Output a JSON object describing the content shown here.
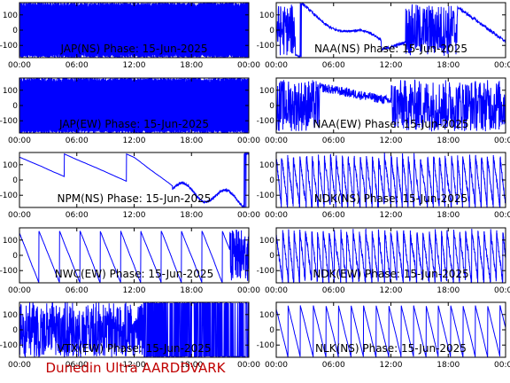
{
  "footer": "Dunedin Ultra AARDDVARK",
  "chart_data": {
    "type": "line",
    "date": "15-Jun-2025",
    "x_ticks": [
      "00:00",
      "06:00",
      "12:00",
      "18:00",
      "00:00"
    ],
    "xlim_hours": [
      0,
      24
    ],
    "ylim": [
      -180,
      180
    ],
    "y_ticks": [
      100,
      0,
      -100
    ],
    "series_color": "#0000ff",
    "panels": [
      {
        "label": "JAP(NS) Phase: 15-Jun-2025",
        "pattern": "dense",
        "col": 0,
        "row": 0
      },
      {
        "label": "NAA(NS) Phase: 15-Jun-2025",
        "pattern": "naa_ns",
        "col": 1,
        "row": 0
      },
      {
        "label": "JAP(EW) Phase: 15-Jun-2025",
        "pattern": "dense",
        "col": 0,
        "row": 1
      },
      {
        "label": "NAA(EW) Phase: 15-Jun-2025",
        "pattern": "naa_ew",
        "col": 1,
        "row": 1
      },
      {
        "label": "NPM(NS) Phase: 15-Jun-2025",
        "pattern": "npm",
        "col": 0,
        "row": 2
      },
      {
        "label": "NDK(NS) Phase: 15-Jun-2025",
        "pattern": "sawdense",
        "col": 1,
        "row": 2
      },
      {
        "label": "NWC(EW) Phase: 15-Jun-2025",
        "pattern": "nwc",
        "col": 0,
        "row": 3
      },
      {
        "label": "NDK(EW) Phase: 15-Jun-2025",
        "pattern": "sawdense",
        "col": 1,
        "row": 3
      },
      {
        "label": "VTX(EW) Phase: 15-Jun-2025",
        "pattern": "vtx",
        "col": 0,
        "row": 4
      },
      {
        "label": "NLK(NS) Phase: 15-Jun-2025",
        "pattern": "nlk",
        "col": 1,
        "row": 4
      }
    ]
  }
}
